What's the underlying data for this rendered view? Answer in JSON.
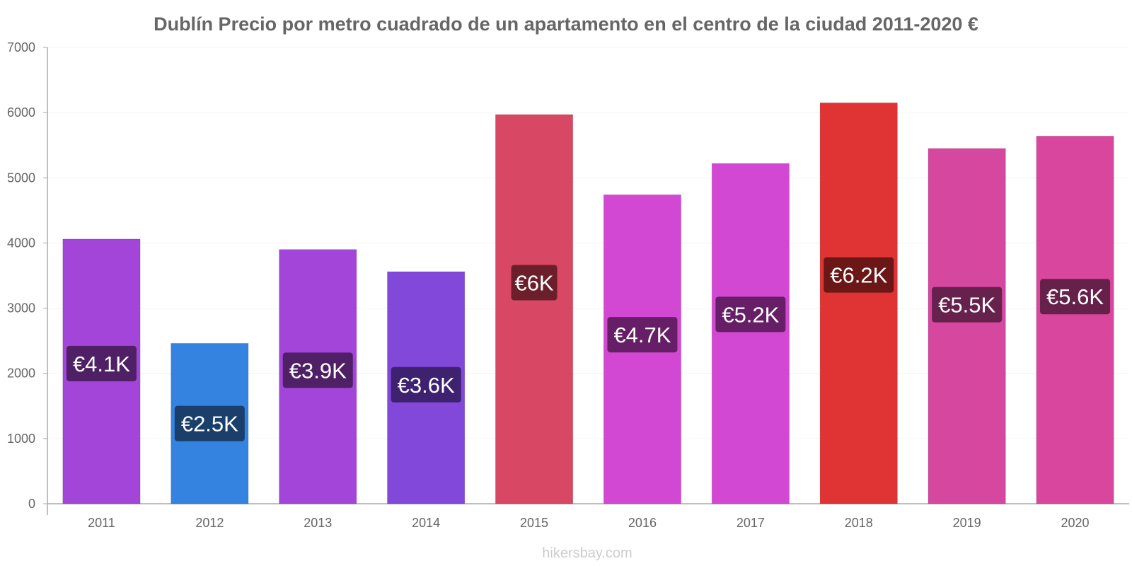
{
  "chart_data": {
    "type": "bar",
    "title": "Dublín Precio por metro cuadrado de un apartamento en el centro de la ciudad 2011-2020 €",
    "xlabel": "",
    "ylabel": "",
    "ylim": [
      0,
      7000
    ],
    "yticks": [
      "0",
      "1000",
      "2000",
      "3000",
      "4000",
      "5000",
      "6000",
      "7000"
    ],
    "grid": true,
    "categories": [
      "2011",
      "2012",
      "2013",
      "2014",
      "2015",
      "2016",
      "2017",
      "2018",
      "2019",
      "2020"
    ],
    "values": [
      4060,
      2460,
      3900,
      3560,
      5970,
      4740,
      5220,
      6150,
      5450,
      5640
    ],
    "labels": [
      "€4.1K",
      "€2.5K",
      "€3.9K",
      "€3.6K",
      "€6K",
      "€4.7K",
      "€5.2K",
      "€6.2K",
      "€5.5K",
      "€5.6K"
    ],
    "bar_colors": [
      "#a445d9",
      "#3583e0",
      "#a445d9",
      "#8148d9",
      "#d84763",
      "#d348d3",
      "#d348d3",
      "#e03434",
      "#d647a0",
      "#d8479d"
    ],
    "label_bg_colors": [
      "#4f2066",
      "#1a3f6b",
      "#4f2066",
      "#3e2270",
      "#6b1f2b",
      "#661f66",
      "#661f66",
      "#6b1717",
      "#66214d",
      "#66214b"
    ],
    "source": "hikersbay.com"
  }
}
